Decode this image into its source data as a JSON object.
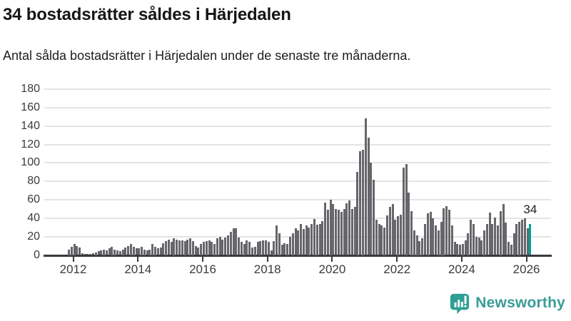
{
  "header": {
    "title": "34 bostadsrätter såldes i Härjedalen",
    "subtitle": "Antal sålda bostadsrätter i Härjedalen under de senaste tre månaderna."
  },
  "chart_data": {
    "type": "bar",
    "title": "34 bostadsrätter såldes i Härjedalen",
    "subtitle": "Antal sålda bostadsrätter i Härjedalen under de senaste tre månaderna.",
    "xlabel": "",
    "ylabel": "",
    "x_frequency": "monthly",
    "x_start": "2011-11",
    "x_end": "2026-02",
    "values": [
      6,
      9,
      12,
      10,
      8,
      2,
      1,
      1,
      1,
      2,
      3,
      4,
      5,
      6,
      5,
      7,
      9,
      6,
      5,
      4,
      6,
      8,
      10,
      12,
      9,
      7,
      7,
      9,
      6,
      5,
      6,
      12,
      9,
      7,
      8,
      13,
      15,
      17,
      14,
      18,
      17,
      16,
      16,
      15,
      17,
      18,
      15,
      10,
      8,
      12,
      14,
      15,
      16,
      14,
      12,
      18,
      20,
      17,
      19,
      21,
      25,
      29,
      29,
      19,
      14,
      12,
      16,
      14,
      8,
      9,
      14,
      15,
      16,
      16,
      14,
      5,
      15,
      32,
      24,
      11,
      13,
      12,
      20,
      24,
      29,
      27,
      34,
      28,
      32,
      30,
      34,
      39,
      33,
      34,
      37,
      57,
      49,
      60,
      55,
      50,
      49,
      47,
      50,
      56,
      59,
      50,
      52,
      90,
      113,
      114,
      148,
      127,
      100,
      82,
      38,
      34,
      32,
      30,
      43,
      52,
      55,
      38,
      42,
      44,
      95,
      99,
      68,
      48,
      27,
      21,
      15,
      18,
      34,
      45,
      47,
      40,
      32,
      27,
      36,
      51,
      53,
      49,
      32,
      14,
      12,
      11,
      12,
      16,
      24,
      38,
      34,
      20,
      19,
      16,
      27,
      34,
      46,
      34,
      41,
      32,
      48,
      55,
      35,
      14,
      11,
      24,
      34,
      36,
      38,
      40,
      29,
      34
    ],
    "highlight": {
      "position": "last",
      "value": 34,
      "label": "34",
      "color": "#00a39a"
    },
    "bar_color": "#66666b",
    "axis_color": "#3a3a3a",
    "grid_color": "#e4e4e4",
    "grid": true,
    "legend": "none",
    "ylim": [
      0,
      180
    ],
    "yticks": [
      0,
      20,
      40,
      60,
      80,
      100,
      120,
      140,
      160,
      180
    ],
    "xtick_years": [
      "2012",
      "2014",
      "2016",
      "2018",
      "2020",
      "2022",
      "2024",
      "2026"
    ]
  },
  "branding": {
    "logo_text": "Newsworthy",
    "logo_icon": "bar-chart-speech-bubble-icon",
    "brand_color": "#3a9c95"
  }
}
